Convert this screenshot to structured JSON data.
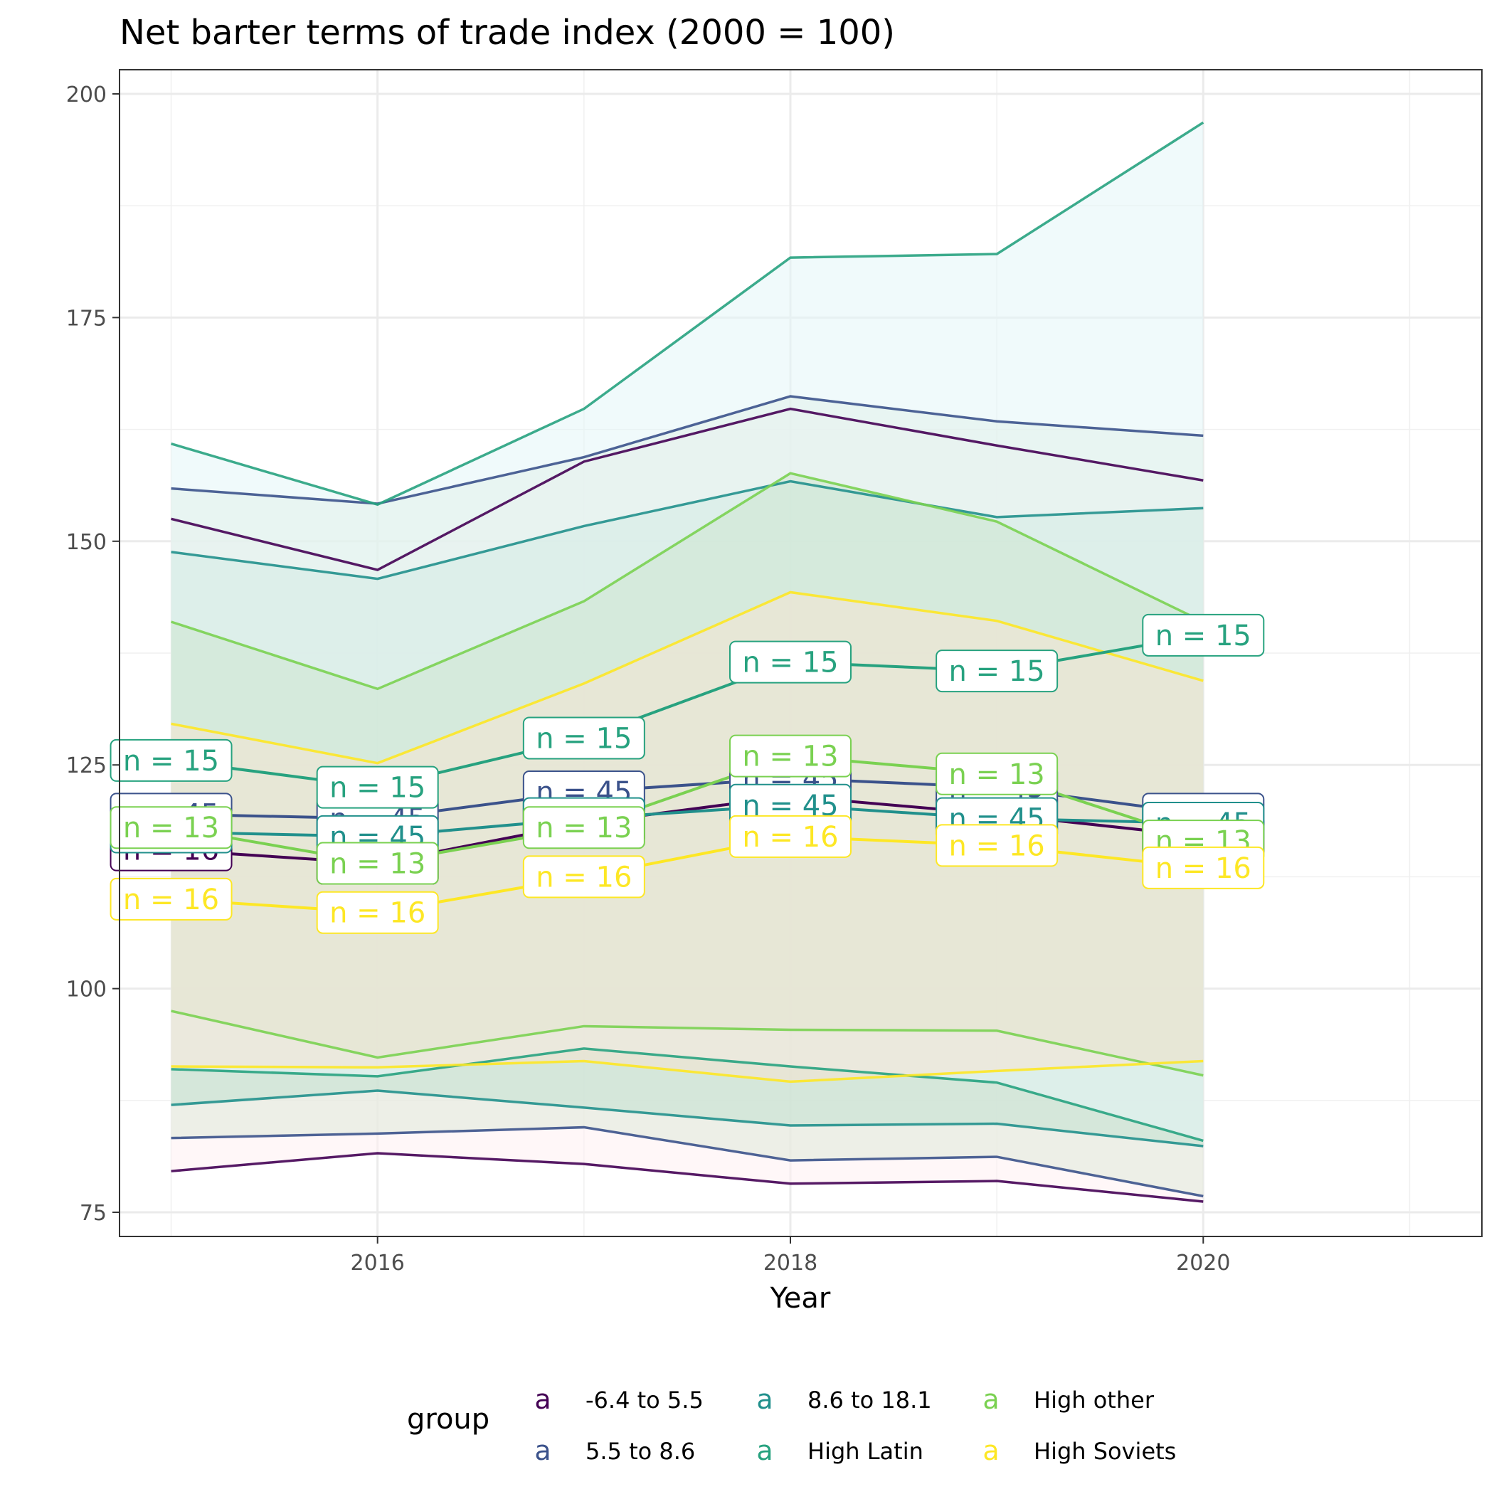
{
  "chart_data": {
    "type": "line",
    "title": "Net barter terms of trade index (2000 = 100)",
    "xlabel": "Year",
    "ylabel": "",
    "xlim": [
      2014.75,
      2021.35
    ],
    "ylim": [
      72.3,
      202.7
    ],
    "x_ticks": [
      2016,
      2018,
      2020
    ],
    "y_ticks": [
      75,
      100,
      125,
      150,
      175,
      200
    ],
    "x_tick_labels": [
      "2016",
      "2018",
      "2020"
    ],
    "y_tick_labels": [
      "75",
      "100",
      "125",
      "150",
      "175",
      "200"
    ],
    "grid": true,
    "legend_placement": "bottom",
    "legend_title": "group",
    "legend_key_glyph": "a",
    "x": [
      2015,
      2016,
      2017,
      2018,
      2019,
      2020
    ],
    "series": [
      {
        "name": "-6.4 to 5.5",
        "color": "#440154",
        "fill": "#fff0f2",
        "mean": [
          115.5,
          114.0,
          118.5,
          121.5,
          119.5,
          117.0
        ],
        "upper": [
          152.5,
          146.8,
          158.9,
          164.8,
          160.7,
          156.8
        ],
        "lower": [
          79.6,
          81.6,
          80.4,
          78.2,
          78.5,
          76.2
        ],
        "label": "n = 16"
      },
      {
        "name": "5.5 to 8.6",
        "color": "#3b528b",
        "fill": "#dfe9d8",
        "mean": [
          119.5,
          119.0,
          122.0,
          123.5,
          122.5,
          119.5
        ],
        "upper": [
          155.9,
          154.2,
          159.4,
          166.2,
          163.4,
          161.8
        ],
        "lower": [
          83.3,
          83.8,
          84.5,
          80.8,
          81.2,
          76.8
        ],
        "label": "n = 45"
      },
      {
        "name": "8.6 to 18.1",
        "color": "#21908c",
        "fill": "#c1e0d0",
        "mean": [
          117.5,
          117.0,
          119.0,
          120.5,
          119.0,
          118.5
        ],
        "upper": [
          148.8,
          145.8,
          151.7,
          156.7,
          152.7,
          153.7
        ],
        "lower": [
          87.0,
          88.6,
          86.7,
          84.7,
          84.9,
          82.4
        ],
        "label": "n = 45"
      },
      {
        "name": "High Latin",
        "color": "#27a27f",
        "fill": "#e3f6f8",
        "mean": [
          125.5,
          122.5,
          128.0,
          136.5,
          135.5,
          139.5
        ],
        "upper": [
          160.9,
          154.1,
          164.8,
          181.7,
          182.1,
          196.8
        ],
        "lower": [
          91.0,
          90.2,
          93.3,
          91.3,
          89.5,
          83.0
        ],
        "label": "n = 15"
      },
      {
        "name": "High other",
        "color": "#7ad151",
        "fill": "#cde5cf",
        "mean": [
          118.0,
          114.0,
          118.0,
          126.0,
          124.0,
          116.5
        ],
        "upper": [
          141.0,
          133.5,
          143.3,
          157.6,
          152.2,
          141.0
        ],
        "lower": [
          97.5,
          92.3,
          95.8,
          95.4,
          95.3,
          90.3
        ],
        "label": "n = 13"
      },
      {
        "name": "High Soviets",
        "color": "#fde725",
        "fill": "#f6e3d2",
        "mean": [
          110.0,
          108.5,
          112.5,
          117.0,
          116.0,
          113.5
        ],
        "upper": [
          129.6,
          125.2,
          134.1,
          144.3,
          141.1,
          134.4
        ],
        "lower": [
          91.3,
          91.2,
          91.9,
          89.6,
          90.8,
          91.9
        ],
        "label": "n = 16"
      }
    ]
  }
}
